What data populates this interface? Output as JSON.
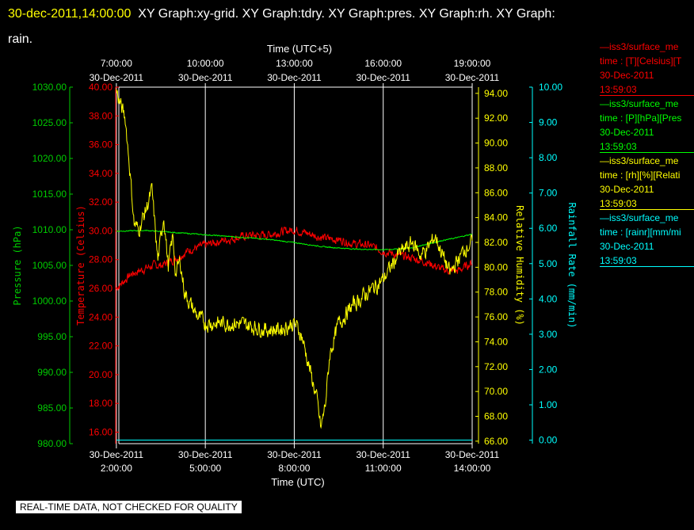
{
  "header": {
    "timestamp": "30-dec-2011,14:00:00",
    "graphs": "XY Graph:xy-grid.  XY Graph:tdry.  XY Graph:pres.  XY Graph:rh.  XY Graph:",
    "graphs_wrap": "rain."
  },
  "footer": {
    "notice": "REAL-TIME DATA, NOT CHECKED FOR QUALITY"
  },
  "legend": [
    {
      "line1": "—iss3/surface_me",
      "line2": "time : [T][Celsius][T",
      "date": "30-Dec-2011",
      "time": "13:59:03",
      "color": "#ff0000"
    },
    {
      "line1": "—iss3/surface_me",
      "line2": "time : [P][hPa][Pres",
      "date": "30-Dec-2011",
      "time": "13:59:03",
      "color": "#00ff00"
    },
    {
      "line1": "—iss3/surface_me",
      "line2": "time : [rh][%][Relati",
      "date": "30-Dec-2011",
      "time": "13:59:03",
      "color": "#ffff00"
    },
    {
      "line1": "—iss3/surface_me",
      "line2": "time : [rainr][mm/mi",
      "date": "30-Dec-2011",
      "time": "13:59:03",
      "color": "#00ffff"
    }
  ],
  "chart_data": {
    "type": "line",
    "bottom_axis": {
      "label": "Time (UTC)",
      "range": [
        "30-Dec-2011 01:55",
        "30-Dec-2011 14:00"
      ],
      "ticks": [
        {
          "date": "30-Dec-2011",
          "time": "2:00:00"
        },
        {
          "date": "30-Dec-2011",
          "time": "5:00:00"
        },
        {
          "date": "30-Dec-2011",
          "time": "8:00:00"
        },
        {
          "date": "30-Dec-2011",
          "time": "11:00:00"
        },
        {
          "date": "30-Dec-2011",
          "time": "14:00:00"
        }
      ]
    },
    "top_axis": {
      "label": "Time (UTC+5)",
      "ticks": [
        {
          "time": "7:00:00",
          "date": "30-Dec-2011"
        },
        {
          "time": "10:00:00",
          "date": "30-Dec-2011"
        },
        {
          "time": "13:00:00",
          "date": "30-Dec-2011"
        },
        {
          "time": "16:00:00",
          "date": "30-Dec-2011"
        },
        {
          "time": "19:00:00",
          "date": "30-Dec-2011"
        }
      ]
    },
    "grid": "vertical lines at each time tick",
    "y_axes": {
      "pressure": {
        "label": "Pressure (hPa)",
        "color": "#00cc00",
        "range": [
          980,
          1030
        ],
        "ticks": [
          "980.00",
          "985.00",
          "990.00",
          "995.00",
          "1000.00",
          "1005.00",
          "1010.00",
          "1015.00",
          "1020.00",
          "1025.00",
          "1030.00"
        ]
      },
      "temperature": {
        "label": "Temperature (Celsius)",
        "color": "#ff0000",
        "range": [
          15.2,
          40
        ],
        "ticks": [
          "16.00",
          "18.00",
          "20.00",
          "22.00",
          "24.00",
          "26.00",
          "28.00",
          "30.00",
          "32.00",
          "34.00",
          "36.00",
          "38.00",
          "40.00"
        ]
      },
      "humidity": {
        "label": "Relative Humidity (%)",
        "color": "#ffff00",
        "range": [
          65.8,
          94.5
        ],
        "ticks": [
          "66.00",
          "68.00",
          "70.00",
          "72.00",
          "74.00",
          "76.00",
          "78.00",
          "80.00",
          "82.00",
          "84.00",
          "86.00",
          "88.00",
          "90.00",
          "92.00",
          "94.00"
        ]
      },
      "rain": {
        "label": "Rainfall Rate (mm/min)",
        "color": "#00ffff",
        "range": [
          -0.1,
          10
        ],
        "ticks": [
          "0.00",
          "1.00",
          "2.00",
          "3.00",
          "4.00",
          "5.00",
          "6.00",
          "7.00",
          "8.00",
          "9.00",
          "10.00"
        ]
      }
    },
    "series": [
      {
        "name": "iss3/surface_met time : [T][Celsius]",
        "axis": "temperature",
        "color": "#ff0000",
        "x": [
          0,
          0.25,
          0.5,
          0.75,
          1,
          1.25,
          1.5,
          1.75,
          2,
          2.25,
          2.5,
          3,
          3.5,
          4,
          4.5,
          5,
          5.5,
          6,
          6.5,
          7,
          7.5,
          8,
          8.5,
          9,
          9.5,
          10,
          10.5,
          11,
          11.5,
          12
        ],
        "y": [
          26.0,
          26.5,
          27.0,
          27.2,
          27.4,
          27.6,
          27.6,
          27.8,
          28.1,
          28.4,
          28.7,
          29.0,
          29.3,
          29.5,
          29.7,
          29.7,
          29.9,
          30.1,
          29.8,
          29.5,
          29.4,
          29.1,
          29.0,
          28.6,
          28.3,
          28.1,
          27.8,
          27.3,
          27.2,
          27.8
        ],
        "noise": 0.25
      },
      {
        "name": "iss3/surface_met time : [P][hPa][Pressure]",
        "axis": "pressure",
        "color": "#00ff00",
        "x": [
          0,
          1,
          2,
          3,
          4,
          5,
          6,
          7,
          8,
          9,
          9.5,
          10,
          10.5,
          11,
          11.5,
          12
        ],
        "y": [
          1009.8,
          1009.9,
          1009.6,
          1009.3,
          1009.0,
          1008.7,
          1008.2,
          1007.6,
          1007.3,
          1007.2,
          1007.3,
          1007.5,
          1008.0,
          1008.5,
          1008.9,
          1009.4
        ],
        "noise": 0.06
      },
      {
        "name": "iss3/surface_met time : [rh][%][Relative Humidity]",
        "axis": "humidity",
        "color": "#ffff00",
        "x": [
          0,
          0.15,
          0.3,
          0.45,
          0.6,
          0.75,
          0.9,
          1.05,
          1.2,
          1.4,
          1.6,
          1.75,
          1.9,
          2.0,
          2.15,
          2.3,
          2.5,
          2.75,
          3,
          3.5,
          4,
          4.5,
          5,
          5.5,
          6,
          6.25,
          6.5,
          6.75,
          6.9,
          7.05,
          7.2,
          7.5,
          8,
          8.5,
          9,
          9.5,
          10,
          10.25,
          10.5,
          10.75,
          11,
          11.25,
          11.5,
          11.75,
          12
        ],
        "y": [
          94.2,
          93.0,
          92.0,
          88.0,
          83.5,
          83.0,
          84.0,
          85.0,
          86.2,
          80.5,
          84.2,
          80.0,
          82.5,
          79.5,
          80.5,
          78.0,
          77.0,
          76.0,
          75.5,
          75.5,
          75.5,
          75.3,
          75.0,
          75.0,
          75.5,
          74.5,
          72.0,
          69.5,
          67.0,
          69.0,
          73.0,
          75.5,
          77.0,
          78.0,
          79.0,
          81.0,
          82.0,
          81.0,
          81.5,
          82.5,
          81.0,
          79.5,
          80.5,
          81.5,
          82.0
        ],
        "noise": 0.55
      },
      {
        "name": "iss3/surface_met time : [rainr][mm/min]",
        "axis": "rain",
        "color": "#00ffff",
        "x": [
          0,
          12
        ],
        "y": [
          0,
          0
        ],
        "noise": 0
      }
    ]
  }
}
